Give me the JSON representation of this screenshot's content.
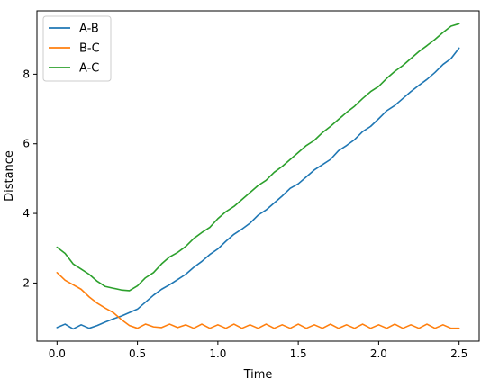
{
  "chart_data": {
    "type": "line",
    "title": "",
    "xlabel": "Time",
    "ylabel": "Distance",
    "xlim": [
      -0.125,
      2.625
    ],
    "ylim": [
      0.33,
      9.82
    ],
    "xticks": [
      0.0,
      0.5,
      1.0,
      1.5,
      2.0,
      2.5
    ],
    "xtick_labels": [
      "0.0",
      "0.5",
      "1.0",
      "1.5",
      "2.0",
      "2.5"
    ],
    "yticks": [
      2,
      4,
      6,
      8
    ],
    "ytick_labels": [
      "2",
      "4",
      "6",
      "8"
    ],
    "grid": false,
    "legend_position": "top-left",
    "series": [
      {
        "name": "A-B",
        "color": "#1f77b4",
        "x": [
          0.0,
          0.05,
          0.1,
          0.15,
          0.2,
          0.25,
          0.3,
          0.35,
          0.4,
          0.45,
          0.5,
          0.55,
          0.6,
          0.65,
          0.7,
          0.75,
          0.8,
          0.85,
          0.9,
          0.95,
          1.0,
          1.05,
          1.1,
          1.15,
          1.2,
          1.25,
          1.3,
          1.35,
          1.4,
          1.45,
          1.5,
          1.55,
          1.6,
          1.65,
          1.7,
          1.75,
          1.8,
          1.85,
          1.9,
          1.95,
          2.0,
          2.05,
          2.1,
          2.15,
          2.2,
          2.25,
          2.3,
          2.35,
          2.4,
          2.45,
          2.5
        ],
        "values": [
          0.72,
          0.82,
          0.68,
          0.8,
          0.7,
          0.78,
          0.88,
          0.97,
          1.05,
          1.15,
          1.25,
          1.45,
          1.65,
          1.82,
          1.95,
          2.1,
          2.25,
          2.45,
          2.62,
          2.82,
          2.98,
          3.2,
          3.4,
          3.55,
          3.72,
          3.95,
          4.1,
          4.3,
          4.5,
          4.72,
          4.85,
          5.05,
          5.25,
          5.4,
          5.55,
          5.8,
          5.95,
          6.12,
          6.35,
          6.5,
          6.72,
          6.95,
          7.1,
          7.3,
          7.5,
          7.68,
          7.85,
          8.05,
          8.28,
          8.45,
          8.75
        ]
      },
      {
        "name": "B-C",
        "color": "#ff7f0e",
        "x": [
          0.0,
          0.05,
          0.1,
          0.15,
          0.2,
          0.25,
          0.3,
          0.35,
          0.4,
          0.45,
          0.5,
          0.55,
          0.6,
          0.65,
          0.7,
          0.75,
          0.8,
          0.85,
          0.9,
          0.95,
          1.0,
          1.05,
          1.1,
          1.15,
          1.2,
          1.25,
          1.3,
          1.35,
          1.4,
          1.45,
          1.5,
          1.55,
          1.6,
          1.65,
          1.7,
          1.75,
          1.8,
          1.85,
          1.9,
          1.95,
          2.0,
          2.05,
          2.1,
          2.15,
          2.2,
          2.25,
          2.3,
          2.35,
          2.4,
          2.45,
          2.5
        ],
        "values": [
          2.3,
          2.08,
          1.95,
          1.82,
          1.6,
          1.42,
          1.28,
          1.15,
          0.95,
          0.78,
          0.7,
          0.82,
          0.74,
          0.72,
          0.82,
          0.72,
          0.8,
          0.7,
          0.82,
          0.7,
          0.8,
          0.7,
          0.82,
          0.7,
          0.8,
          0.7,
          0.82,
          0.7,
          0.8,
          0.7,
          0.82,
          0.7,
          0.8,
          0.7,
          0.82,
          0.7,
          0.8,
          0.7,
          0.82,
          0.7,
          0.8,
          0.7,
          0.82,
          0.7,
          0.8,
          0.7,
          0.82,
          0.7,
          0.8,
          0.7,
          0.7
        ]
      },
      {
        "name": "A-C",
        "color": "#2ca02c",
        "x": [
          0.0,
          0.05,
          0.1,
          0.15,
          0.2,
          0.25,
          0.3,
          0.35,
          0.4,
          0.45,
          0.5,
          0.55,
          0.6,
          0.65,
          0.7,
          0.75,
          0.8,
          0.85,
          0.9,
          0.95,
          1.0,
          1.05,
          1.1,
          1.15,
          1.2,
          1.25,
          1.3,
          1.35,
          1.4,
          1.45,
          1.5,
          1.55,
          1.6,
          1.65,
          1.7,
          1.75,
          1.8,
          1.85,
          1.9,
          1.95,
          2.0,
          2.05,
          2.1,
          2.15,
          2.2,
          2.25,
          2.3,
          2.35,
          2.4,
          2.45,
          2.5
        ],
        "values": [
          3.03,
          2.85,
          2.55,
          2.4,
          2.25,
          2.05,
          1.9,
          1.85,
          1.8,
          1.78,
          1.92,
          2.15,
          2.3,
          2.55,
          2.75,
          2.88,
          3.05,
          3.28,
          3.45,
          3.6,
          3.85,
          4.05,
          4.2,
          4.4,
          4.6,
          4.8,
          4.95,
          5.18,
          5.35,
          5.55,
          5.75,
          5.95,
          6.1,
          6.32,
          6.5,
          6.7,
          6.9,
          7.08,
          7.3,
          7.5,
          7.65,
          7.88,
          8.08,
          8.25,
          8.45,
          8.65,
          8.82,
          9.0,
          9.2,
          9.38,
          9.45
        ]
      }
    ]
  }
}
